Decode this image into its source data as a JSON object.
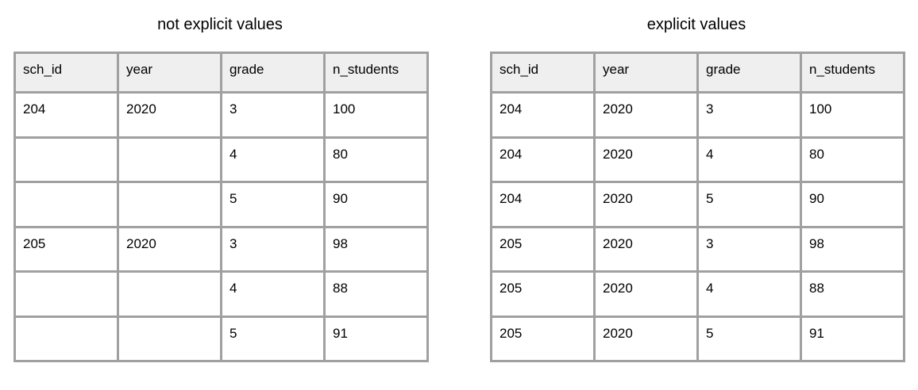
{
  "tables": [
    {
      "title": "not explicit values",
      "columns": [
        "sch_id",
        "year",
        "grade",
        "n_students"
      ],
      "rows": [
        [
          "204",
          "2020",
          "3",
          "100"
        ],
        [
          "",
          "",
          "4",
          "80"
        ],
        [
          "",
          "",
          "5",
          "90"
        ],
        [
          "205",
          "2020",
          "3",
          "98"
        ],
        [
          "",
          "",
          "4",
          "88"
        ],
        [
          "",
          "",
          "5",
          "91"
        ]
      ]
    },
    {
      "title": "explicit values",
      "columns": [
        "sch_id",
        "year",
        "grade",
        "n_students"
      ],
      "rows": [
        [
          "204",
          "2020",
          "3",
          "100"
        ],
        [
          "204",
          "2020",
          "4",
          "80"
        ],
        [
          "204",
          "2020",
          "5",
          "90"
        ],
        [
          "205",
          "2020",
          "3",
          "98"
        ],
        [
          "205",
          "2020",
          "4",
          "88"
        ],
        [
          "205",
          "2020",
          "5",
          "91"
        ]
      ]
    }
  ]
}
